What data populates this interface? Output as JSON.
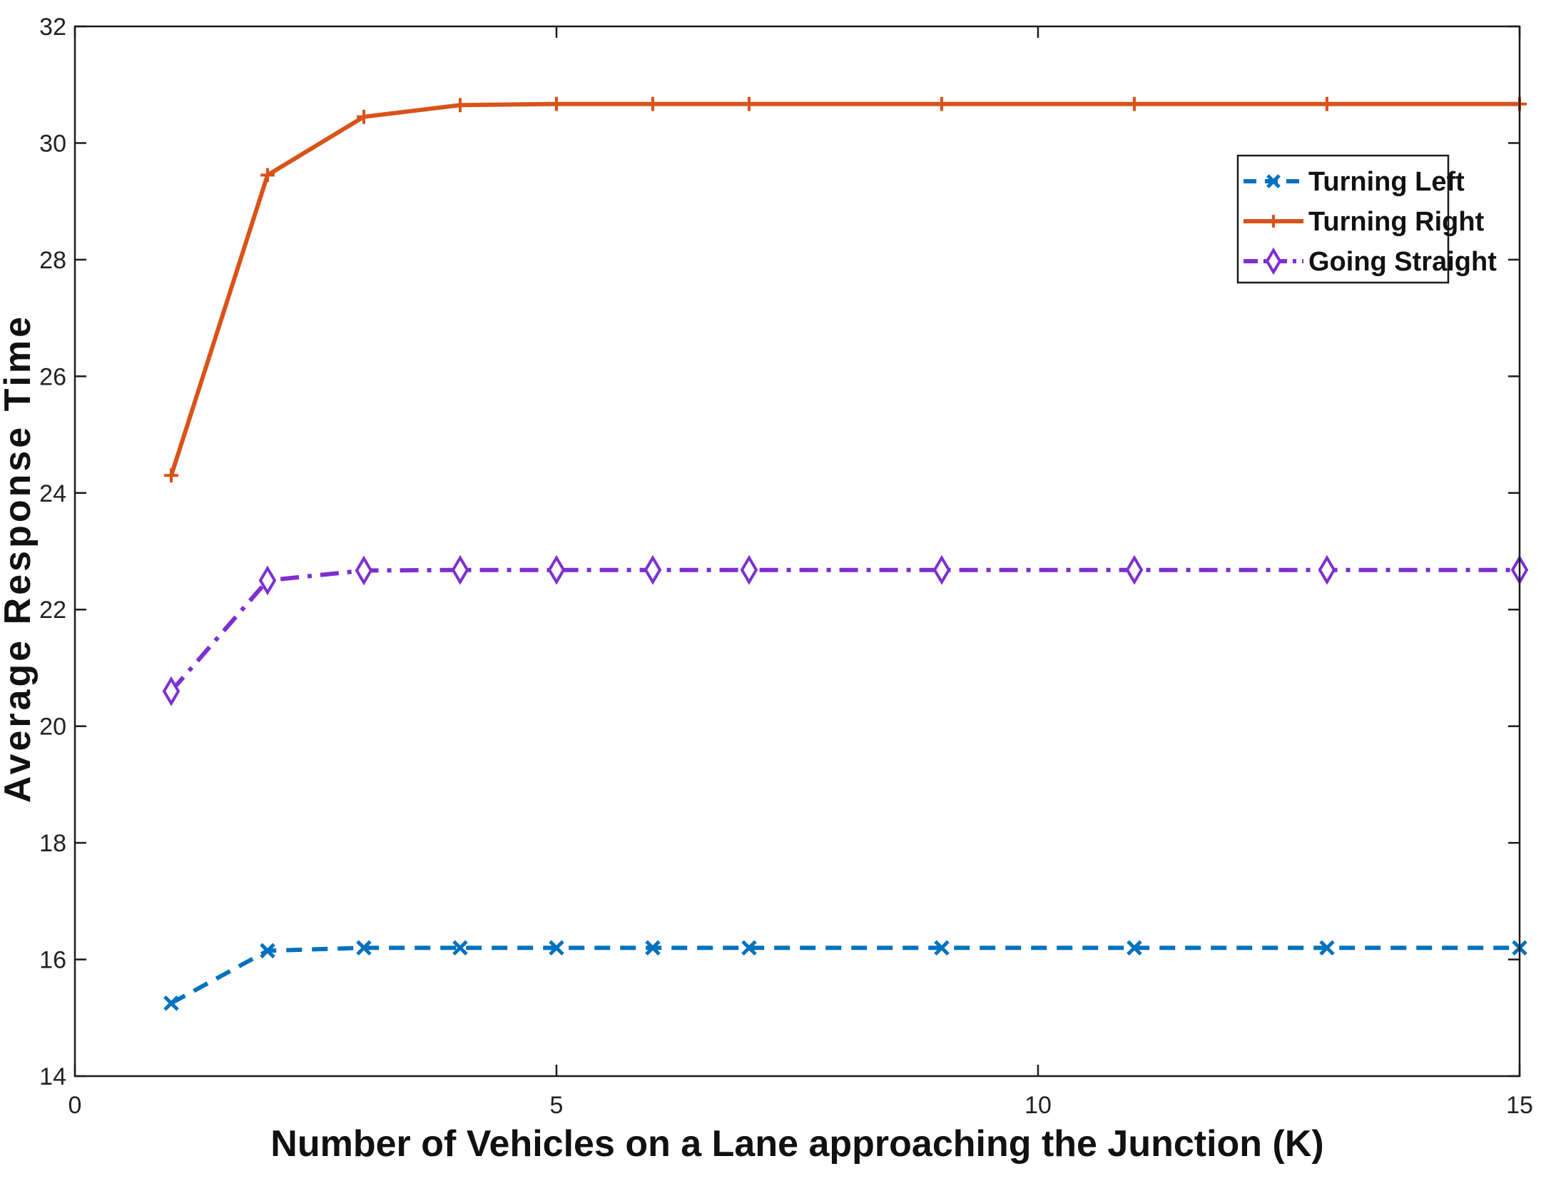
{
  "chart_data": {
    "type": "line",
    "title": "",
    "xlabel": "Number of Vehicles on a Lane approaching the Junction  (K)",
    "ylabel": "Average Response Time",
    "xlim": [
      0,
      15
    ],
    "ylim": [
      14,
      32
    ],
    "xticks": [
      0,
      5,
      10,
      15
    ],
    "yticks": [
      14,
      16,
      18,
      20,
      22,
      24,
      26,
      28,
      30,
      32
    ],
    "grid": false,
    "legend_position": "top-right",
    "x": [
      1,
      2,
      3,
      4,
      5,
      6,
      7,
      9,
      11,
      13,
      15
    ],
    "series": [
      {
        "name": "Turning Left",
        "color": "#0072BD",
        "line_style": "dashed",
        "marker": "x",
        "values": [
          15.25,
          16.15,
          16.2,
          16.2,
          16.2,
          16.2,
          16.2,
          16.2,
          16.2,
          16.2,
          16.2
        ]
      },
      {
        "name": "Turning Right",
        "color": "#D95319",
        "line_style": "solid",
        "marker": "+",
        "values": [
          24.3,
          29.45,
          30.45,
          30.65,
          30.67,
          30.67,
          30.67,
          30.67,
          30.67,
          30.67,
          30.67
        ]
      },
      {
        "name": "Going Straight",
        "color": "#7E2FD0",
        "line_style": "dashdot",
        "marker": "diamond",
        "values": [
          20.6,
          22.5,
          22.67,
          22.68,
          22.68,
          22.68,
          22.68,
          22.68,
          22.68,
          22.68,
          22.68
        ]
      }
    ]
  }
}
